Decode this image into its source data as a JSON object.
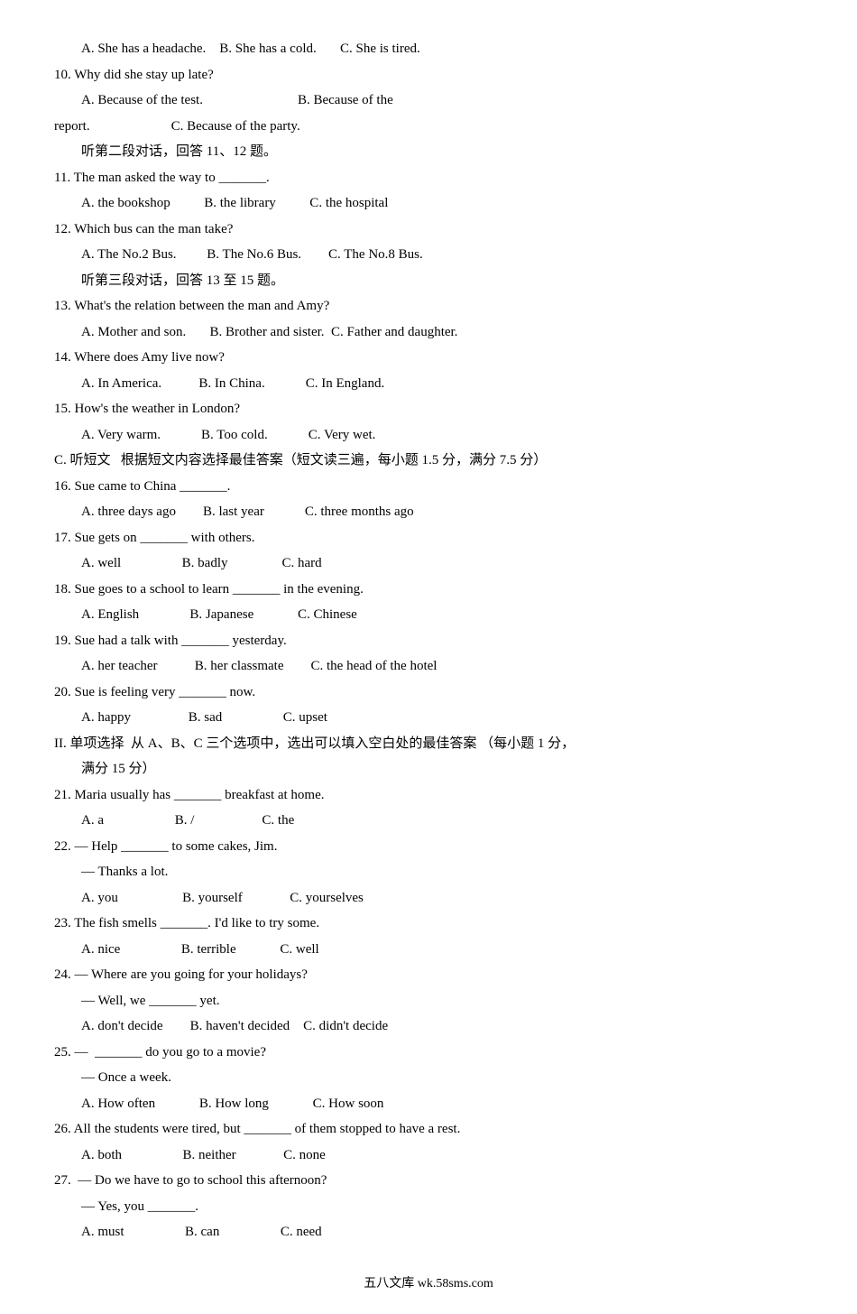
{
  "lines": [
    {
      "cls": "indent1",
      "t": "A. She has a headache.    B. She has a cold.       C. She is tired."
    },
    {
      "cls": "",
      "t": "10. Why did she stay up late?"
    },
    {
      "cls": "indent1",
      "t": "A. Because of the test.                            B. Because of the"
    },
    {
      "cls": "",
      "t": "report.                        C. Because of the party."
    },
    {
      "cls": "indent1",
      "t": "听第二段对话，回答 11、12 题。"
    },
    {
      "cls": "",
      "t": "11. The man asked the way to _______."
    },
    {
      "cls": "indent1",
      "t": "A. the bookshop          B. the library          C. the hospital"
    },
    {
      "cls": "",
      "t": "12. Which bus can the man take?"
    },
    {
      "cls": "indent1",
      "t": "A. The No.2 Bus.         B. The No.6 Bus.        C. The No.8 Bus."
    },
    {
      "cls": "indent1",
      "t": "听第三段对话，回答 13 至 15 题。"
    },
    {
      "cls": "",
      "t": "13. What's the relation between the man and Amy?"
    },
    {
      "cls": "indent1",
      "t": "A. Mother and son.       B. Brother and sister.  C. Father and daughter."
    },
    {
      "cls": "",
      "t": "14. Where does Amy live now?"
    },
    {
      "cls": "indent1",
      "t": "A. In America.           B. In China.            C. In England."
    },
    {
      "cls": "",
      "t": "15. How's the weather in London?"
    },
    {
      "cls": "indent1",
      "t": "A. Very warm.            B. Too cold.            C. Very wet."
    },
    {
      "cls": "",
      "t": "C. 听短文   根据短文内容选择最佳答案（短文读三遍，每小题 1.5 分，满分 7.5 分）"
    },
    {
      "cls": "",
      "t": "16. Sue came to China _______."
    },
    {
      "cls": "indent1",
      "t": "A. three days ago        B. last year            C. three months ago"
    },
    {
      "cls": "",
      "t": "17. Sue gets on _______ with others."
    },
    {
      "cls": "indent1",
      "t": "A. well                  B. badly                C. hard"
    },
    {
      "cls": "",
      "t": "18. Sue goes to a school to learn _______ in the evening."
    },
    {
      "cls": "indent1",
      "t": "A. English               B. Japanese             C. Chinese"
    },
    {
      "cls": "",
      "t": "19. Sue had a talk with _______ yesterday."
    },
    {
      "cls": "indent1",
      "t": "A. her teacher           B. her classmate        C. the head of the hotel"
    },
    {
      "cls": "",
      "t": "20. Sue is feeling very _______ now."
    },
    {
      "cls": "indent1",
      "t": "A. happy                 B. sad                  C. upset"
    },
    {
      "cls": "",
      "t": "II. 单项选择  从 A、B、C 三个选项中，选出可以填入空白处的最佳答案 （每小题 1 分，"
    },
    {
      "cls": "indent1",
      "t": "满分 15 分）"
    },
    {
      "cls": "",
      "t": "21. Maria usually has _______ breakfast at home."
    },
    {
      "cls": "indent1",
      "t": "A. a                     B. /                    C. the"
    },
    {
      "cls": "",
      "t": "22. — Help _______ to some cakes, Jim."
    },
    {
      "cls": "indent1",
      "t": "— Thanks a lot."
    },
    {
      "cls": "indent1",
      "t": "A. you                   B. yourself              C. yourselves"
    },
    {
      "cls": "",
      "t": "23. The fish smells _______. I'd like to try some."
    },
    {
      "cls": "indent1",
      "t": "A. nice                  B. terrible             C. well"
    },
    {
      "cls": "",
      "t": "24. — Where are you going for your holidays?"
    },
    {
      "cls": "indent1",
      "t": "— Well, we _______ yet."
    },
    {
      "cls": "indent1",
      "t": "A. don't decide        B. haven't decided    C. didn't decide"
    },
    {
      "cls": "",
      "t": "25. —  _______ do you go to a movie?"
    },
    {
      "cls": "indent1",
      "t": "— Once a week."
    },
    {
      "cls": "indent1",
      "t": "A. How often             B. How long             C. How soon"
    },
    {
      "cls": "",
      "t": "26. All the students were tired, but _______ of them stopped to have a rest."
    },
    {
      "cls": "indent1",
      "t": "A. both                  B. neither              C. none"
    },
    {
      "cls": "",
      "t": "27.  — Do we have to go to school this afternoon?"
    },
    {
      "cls": "indent1",
      "t": "— Yes, you _______."
    },
    {
      "cls": "indent1",
      "t": "A. must                  B. can                  C. need"
    }
  ],
  "footer": "五八文库 wk.58sms.com"
}
